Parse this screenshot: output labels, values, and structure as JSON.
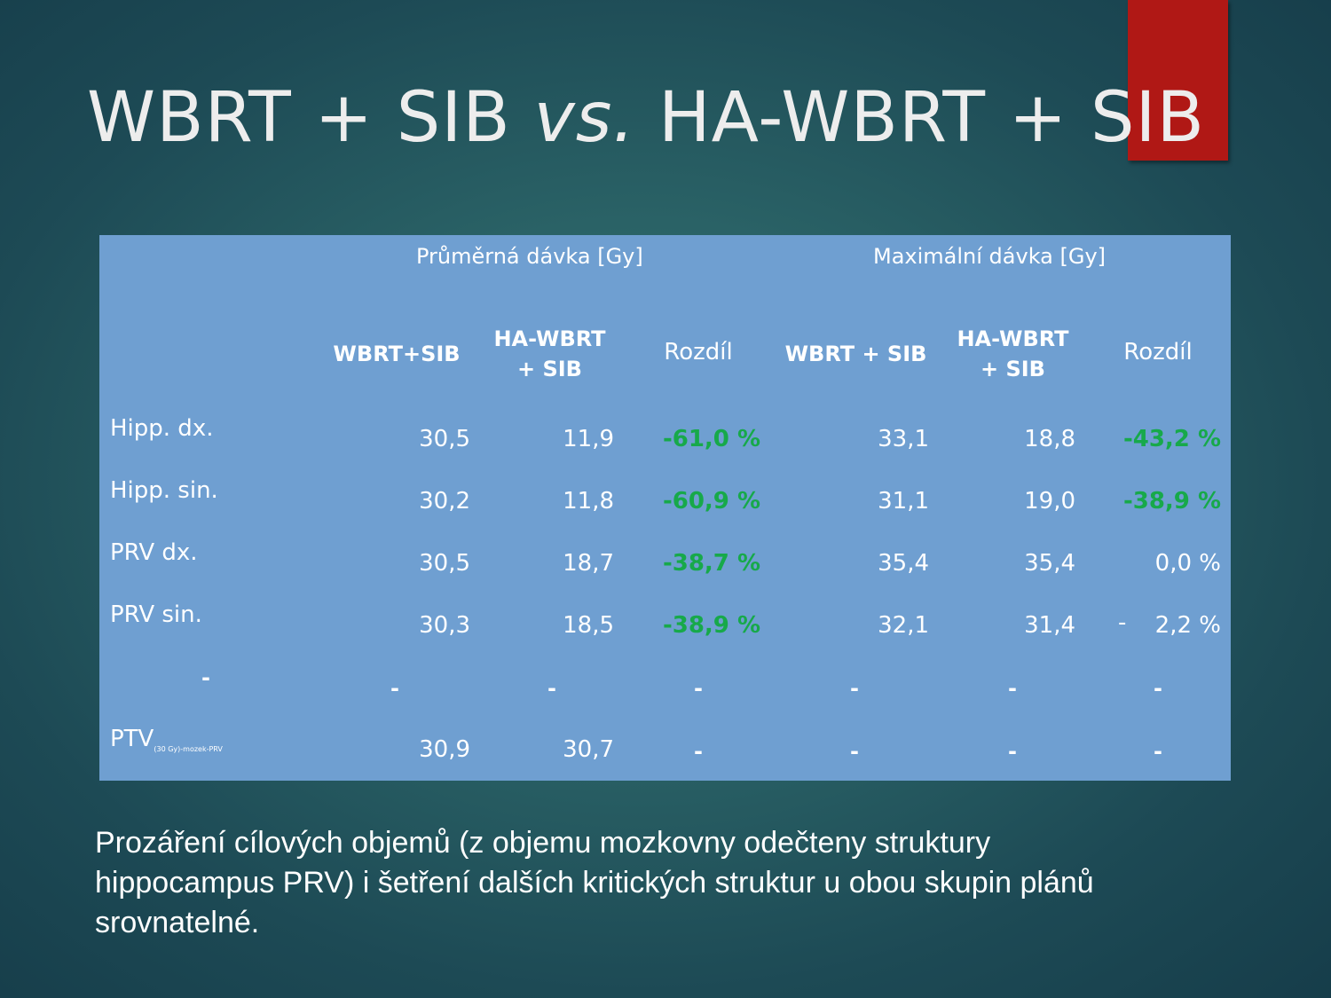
{
  "title": {
    "main": "WBRT + SIB ",
    "italic": "vs.",
    "rest": " HA-WBRT + SIB"
  },
  "table": {
    "group_headers": [
      "Průměrná dávka [Gy]",
      "Maximální dávka [Gy]"
    ],
    "col_headers": {
      "c1": "WBRT+SIB",
      "c2a": "HA-WBRT",
      "c2b": "+ SIB",
      "c3": "Rozdíl",
      "c4": "WBRT + SIB",
      "c5a": "HA-WBRT",
      "c5b": "+ SIB",
      "c6": "Rozdíl"
    },
    "rows": [
      {
        "label": "Hipp. dx.",
        "v1": "30,5",
        "v2": "11,9",
        "v3": "-61,0 %",
        "v4": "33,1",
        "v5": "18,8",
        "v6": "-43,2 %"
      },
      {
        "label": "Hipp. sin.",
        "v1": "30,2",
        "v2": "11,8",
        "v3": "-60,9 %",
        "v4": "31,1",
        "v5": "19,0",
        "v6": "-38,9 %"
      },
      {
        "label": "PRV dx.",
        "v1": "30,5",
        "v2": "18,7",
        "v3": "-38,7 %",
        "v4": "35,4",
        "v5": "35,4",
        "v6": "0,0 %"
      },
      {
        "label": "PRV sin.",
        "v1": "30,3",
        "v2": "18,5",
        "v3": "-38,9 %",
        "v4": "32,1",
        "v5": "31,4",
        "v6": "2,2 %",
        "v6_prefix": "-"
      },
      {
        "label": "-",
        "v1": "-",
        "v2": "-",
        "v3": "-",
        "v4": "-",
        "v5": "-",
        "v6": "-"
      },
      {
        "label": "PTV",
        "label_sub": "(30 Gy)-mozek-PRV",
        "v1": "30,9",
        "v2": "30,7",
        "v3": "-",
        "v4": "-",
        "v5": "-",
        "v6": "-"
      }
    ]
  },
  "note": "Prozáření cílových objemů (z objemu mozkovny odečteny struktury hippocampus PRV) i šetření dalších kritických struktur u obou skupin plánů srovnatelné.",
  "colors": {
    "accent": "#b01815",
    "table_bg": "#6f9fd1",
    "positive_diff": "#17a94a"
  }
}
